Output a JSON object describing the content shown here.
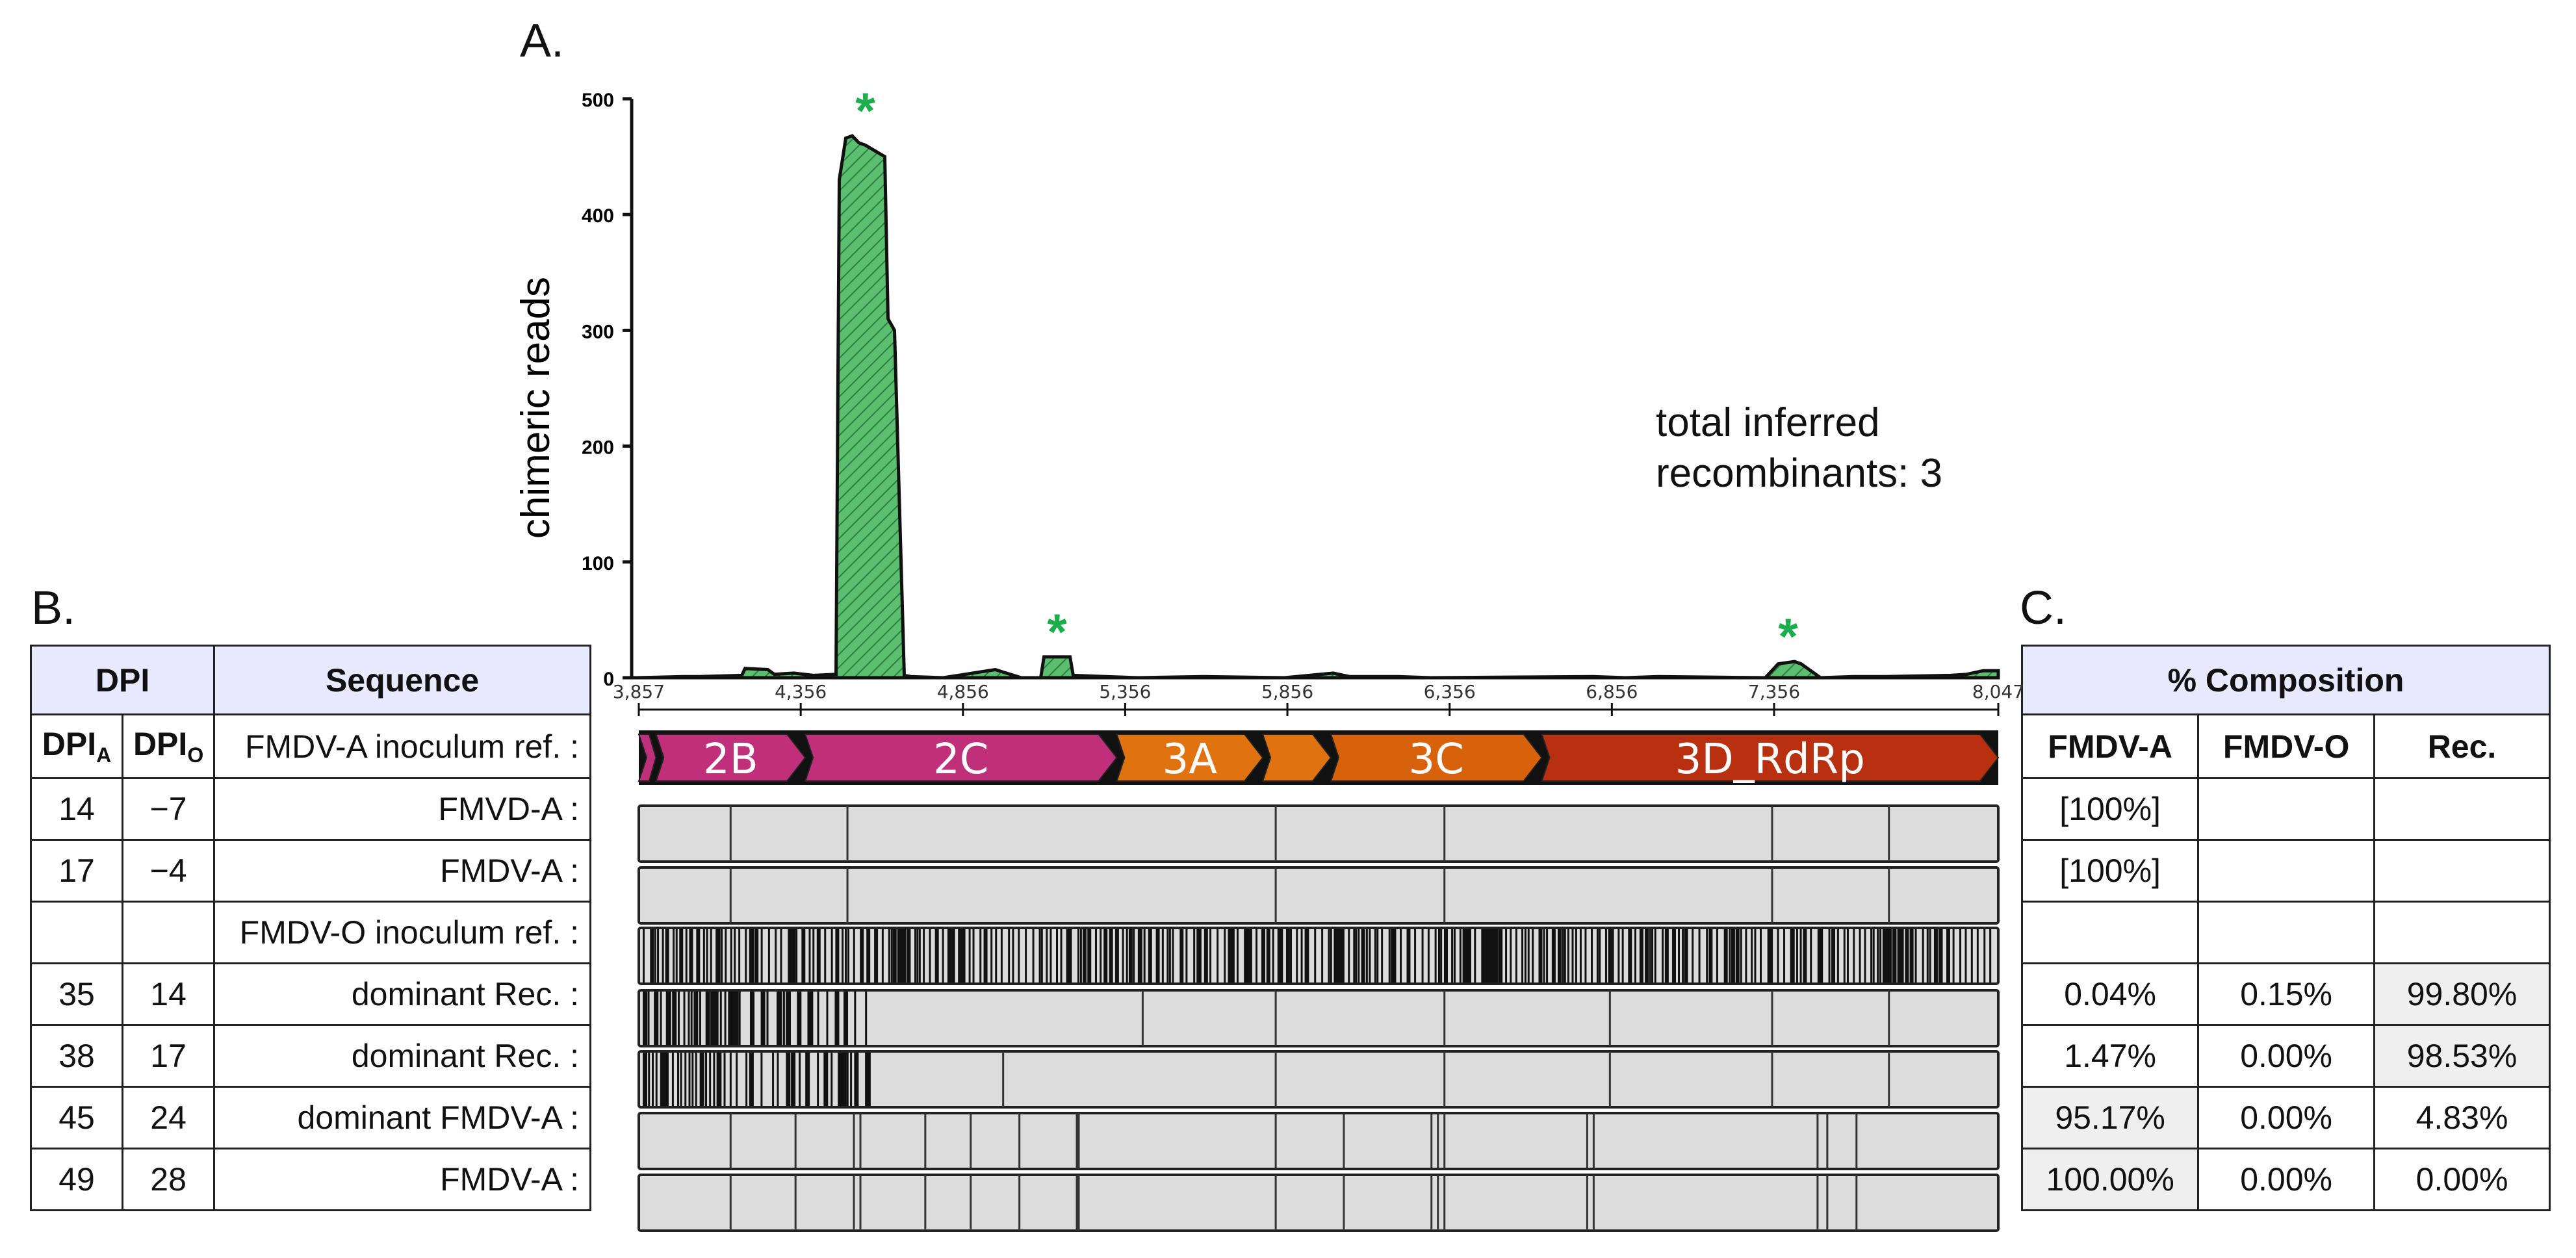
{
  "panels": {
    "a": "A.",
    "b": "B.",
    "c": "C."
  },
  "annotation": {
    "line1": "total inferred",
    "line2": "recombinants: 3"
  },
  "chart_data": {
    "type": "area",
    "ylabel": "chimeric reads",
    "ylim": [
      0,
      500
    ],
    "yticks": [
      "0",
      "100",
      "200",
      "300",
      "400",
      "500"
    ],
    "xlim": [
      3857,
      8047
    ],
    "xticks": [
      3857,
      4356,
      4856,
      5356,
      5856,
      6356,
      6856,
      7356,
      8047
    ],
    "xtick_labels": [
      "3,857",
      "4,356",
      "4,856",
      "5,356",
      "5,856",
      "6,356",
      "6,856",
      "7,356",
      "8,047"
    ],
    "series": [
      {
        "x": [
          3857,
          4000,
          4050,
          4180,
          4190,
          4260,
          4280,
          4340,
          4400,
          4470,
          4480,
          4500,
          4520,
          4540,
          4560,
          4620,
          4630,
          4650,
          4680,
          4700,
          4800,
          4960,
          5040,
          5100,
          5110,
          5190,
          5200,
          5300,
          5400,
          5600,
          5850,
          6000,
          6050,
          6200,
          6300,
          6800,
          6900,
          7000,
          7330,
          7370,
          7420,
          7440,
          7500,
          7600,
          7700,
          7900,
          7950,
          8000,
          8047
        ],
        "values": [
          0,
          1,
          1,
          2,
          8,
          7,
          3,
          4,
          2,
          3,
          430,
          466,
          468,
          462,
          460,
          450,
          310,
          300,
          2,
          1,
          0,
          7,
          0,
          0,
          18,
          18,
          2,
          1,
          0,
          1,
          0,
          4,
          1,
          1,
          0,
          1,
          0,
          1,
          0,
          12,
          14,
          12,
          0,
          1,
          1,
          2,
          3,
          6,
          6
        ],
        "color": "#5bbf6f"
      }
    ],
    "asterisks_at": [
      4560,
      5150,
      7400
    ],
    "asterisk_color": "#1bae4b"
  },
  "genes": [
    {
      "label": "",
      "start": 3857,
      "end": 3910,
      "color": "#c0307a"
    },
    {
      "label": "2B",
      "start": 3910,
      "end": 4370,
      "color": "#c0307a"
    },
    {
      "label": "2C",
      "start": 4370,
      "end": 5330,
      "color": "#c0307a"
    },
    {
      "label": "3A",
      "start": 5330,
      "end": 5780,
      "color": "#e07310"
    },
    {
      "label": "",
      "start": 5780,
      "end": 5990,
      "color": "#e07310"
    },
    {
      "label": "3C",
      "start": 5990,
      "end": 6640,
      "color": "#d8620b"
    },
    {
      "label": "3D_RdRp",
      "start": 6640,
      "end": 8047,
      "color": "#b83010"
    }
  ],
  "table_b": {
    "header_dpi": "DPI",
    "header_seq": "Sequence",
    "dpi_a": "DPI",
    "dpi_a_sub": "A",
    "dpi_o": "DPI",
    "dpi_o_sub": "O",
    "ref_label": "FMDV-A inoculum ref. :",
    "rows": [
      {
        "a": "14",
        "o": "−7",
        "seq": "FMVD-A :"
      },
      {
        "a": "17",
        "o": "−4",
        "seq": "FMDV-A :"
      },
      {
        "a": "",
        "o": "",
        "seq": "FMDV-O inoculum ref. :"
      },
      {
        "a": "35",
        "o": "14",
        "seq": "dominant Rec. :"
      },
      {
        "a": "38",
        "o": "17",
        "seq": "dominant Rec. :"
      },
      {
        "a": "45",
        "o": "24",
        "seq": "dominant FMDV-A :"
      },
      {
        "a": "49",
        "o": "28",
        "seq": "FMDV-A :"
      }
    ]
  },
  "table_c": {
    "header": "% Composition",
    "cols": [
      "FMDV-A",
      "FMDV-O",
      "Rec."
    ],
    "rows": [
      [
        "[100%]",
        "",
        ""
      ],
      [
        "[100%]",
        "",
        ""
      ],
      [
        "",
        "",
        ""
      ],
      [
        "0.04%",
        "0.15%",
        "99.80%"
      ],
      [
        "1.47%",
        "0.00%",
        "98.53%"
      ],
      [
        "95.17%",
        "0.00%",
        "4.83%"
      ],
      [
        "100.00%",
        "0.00%",
        "0.00%"
      ]
    ],
    "highlight": [
      [
        3,
        2
      ],
      [
        4,
        2
      ],
      [
        5,
        0
      ],
      [
        6,
        0
      ]
    ]
  }
}
